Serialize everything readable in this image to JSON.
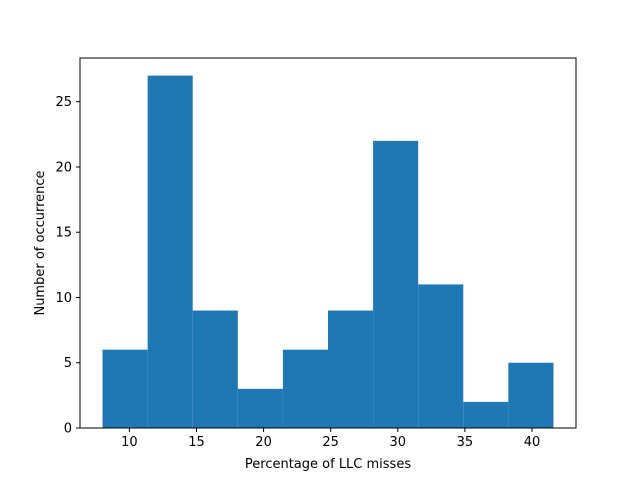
{
  "chart_data": {
    "type": "bar",
    "subtype": "histogram",
    "title": "",
    "xlabel": "Percentage of LLC misses",
    "ylabel": "Number of occurrence",
    "bins": [
      {
        "start": 8.0,
        "end": 11.36,
        "count": 6
      },
      {
        "start": 11.36,
        "end": 14.72,
        "count": 27
      },
      {
        "start": 14.72,
        "end": 18.08,
        "count": 9
      },
      {
        "start": 18.08,
        "end": 21.44,
        "count": 3
      },
      {
        "start": 21.44,
        "end": 24.8,
        "count": 6
      },
      {
        "start": 24.8,
        "end": 28.16,
        "count": 9
      },
      {
        "start": 28.16,
        "end": 31.52,
        "count": 22
      },
      {
        "start": 31.52,
        "end": 34.88,
        "count": 11
      },
      {
        "start": 34.88,
        "end": 38.24,
        "count": 2
      },
      {
        "start": 38.24,
        "end": 41.6,
        "count": 5
      }
    ],
    "xlim": [
      6.32,
      43.28
    ],
    "ylim": [
      0,
      28.35
    ],
    "xticks": [
      10,
      15,
      20,
      25,
      30,
      35,
      40
    ],
    "yticks": [
      0,
      5,
      10,
      15,
      20,
      25
    ],
    "bar_color": "#1f77b4",
    "grid": false,
    "legend": "none"
  }
}
